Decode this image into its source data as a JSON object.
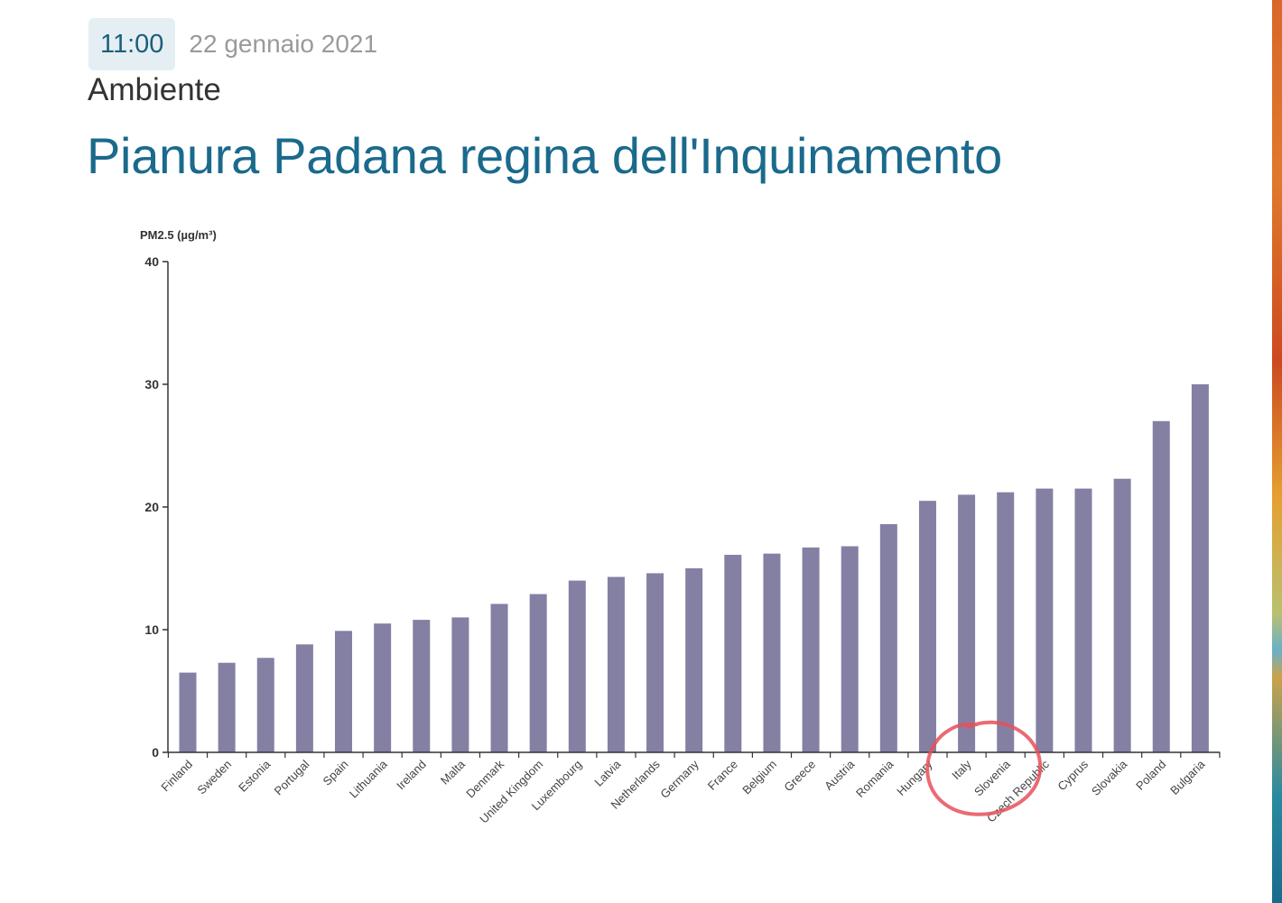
{
  "header": {
    "time": "11:00",
    "date": "22 gennaio 2021",
    "category": "Ambiente",
    "title": "Pianura Padana regina dell'Inquinamento"
  },
  "chart_data": {
    "type": "bar",
    "ylabel": "PM2.5 (µg/m³)",
    "ylim": [
      0,
      40
    ],
    "yticks": [
      "0",
      "10",
      "20",
      "30",
      "40"
    ],
    "bar_color": "#8480a3",
    "highlight": {
      "categories": [
        "Italy",
        "Slovenia"
      ],
      "color": "#e8505b"
    },
    "categories": [
      "Finland",
      "Sweden",
      "Estonia",
      "Portugal",
      "Spain",
      "Lithuania",
      "Ireland",
      "Malta",
      "Denmark",
      "United Kingdom",
      "Luxembourg",
      "Latvia",
      "Netherlands",
      "Germany",
      "France",
      "Belgium",
      "Greece",
      "Austria",
      "Romania",
      "Hungary",
      "Italy",
      "Slovenia",
      "Czech Republic",
      "Cyprus",
      "Slovakia",
      "Poland",
      "Bulgaria"
    ],
    "values": [
      6.5,
      7.3,
      7.7,
      8.8,
      9.9,
      10.5,
      10.8,
      11.0,
      12.1,
      12.9,
      14.0,
      14.3,
      14.6,
      15.0,
      16.1,
      16.2,
      16.7,
      16.8,
      18.6,
      20.5,
      21.0,
      21.2,
      21.5,
      21.5,
      22.3,
      27.0,
      30.0
    ]
  }
}
